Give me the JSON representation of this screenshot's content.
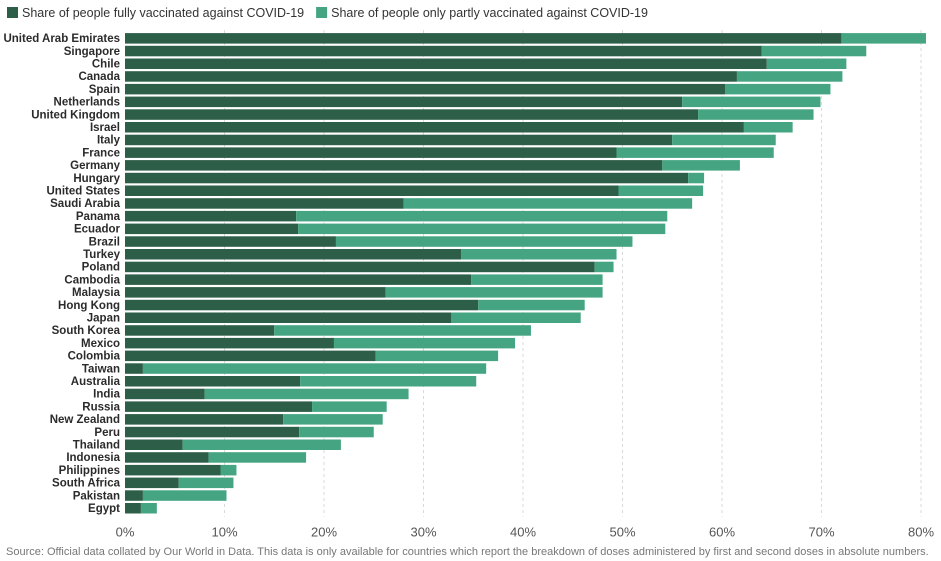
{
  "chart_data": {
    "type": "bar",
    "orientation": "horizontal",
    "stacked": true,
    "categories": [
      "United Arab Emirates",
      "Singapore",
      "Chile",
      "Canada",
      "Spain",
      "Netherlands",
      "United Kingdom",
      "Israel",
      "Italy",
      "France",
      "Germany",
      "Hungary",
      "United States",
      "Saudi Arabia",
      "Panama",
      "Ecuador",
      "Brazil",
      "Turkey",
      "Poland",
      "Cambodia",
      "Malaysia",
      "Hong Kong",
      "Japan",
      "South Korea",
      "Mexico",
      "Colombia",
      "Taiwan",
      "Australia",
      "India",
      "Russia",
      "New Zealand",
      "Peru",
      "Thailand",
      "Indonesia",
      "Philippines",
      "South Africa",
      "Pakistan",
      "Egypt"
    ],
    "series": [
      {
        "name": "Share of people fully vaccinated against COVID-19",
        "color": "#2d5e47",
        "values": [
          72.0,
          64.0,
          64.5,
          61.5,
          60.3,
          56.0,
          57.6,
          62.2,
          55.0,
          49.4,
          54.0,
          56.6,
          49.6,
          28.0,
          17.2,
          17.4,
          21.2,
          33.8,
          47.2,
          34.8,
          26.2,
          35.5,
          32.8,
          15.0,
          21.0,
          25.2,
          1.8,
          17.6,
          8.0,
          18.8,
          15.9,
          17.5,
          5.8,
          8.4,
          9.6,
          5.4,
          1.8,
          1.6
        ]
      },
      {
        "name": "Share of people only partly vaccinated against COVID-19",
        "color": "#45a583",
        "values": [
          8.5,
          10.5,
          8.0,
          10.6,
          10.6,
          13.9,
          11.6,
          4.9,
          10.4,
          15.8,
          7.8,
          1.6,
          8.5,
          29.0,
          37.3,
          36.9,
          29.8,
          15.6,
          1.9,
          13.2,
          21.8,
          10.7,
          13.0,
          25.8,
          18.2,
          12.3,
          34.5,
          17.7,
          20.5,
          7.5,
          10.0,
          7.5,
          15.9,
          9.8,
          1.6,
          5.5,
          8.4,
          1.6
        ]
      }
    ],
    "x_axis": {
      "min": 0,
      "max": 80,
      "ticks": [
        0,
        10,
        20,
        30,
        40,
        50,
        60,
        70,
        80
      ],
      "tick_labels": [
        "0%",
        "10%",
        "20%",
        "30%",
        "40%",
        "50%",
        "60%",
        "70%",
        "80%"
      ]
    },
    "grid": true,
    "legend_position": "top-left"
  },
  "source_note": "Source: Official data collated by Our World in Data. This data is only available for countries which report the breakdown of doses administered by first and second doses in absolute numbers."
}
